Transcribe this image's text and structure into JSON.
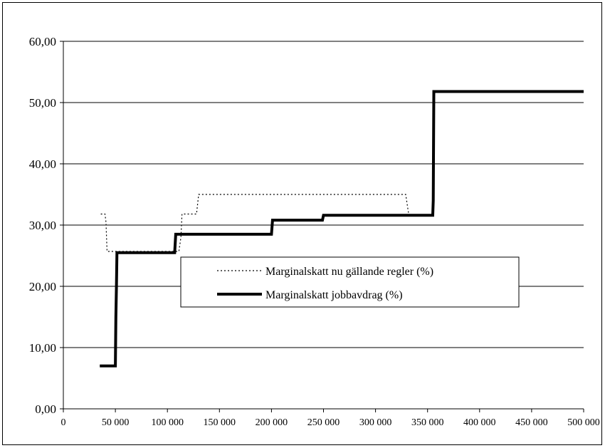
{
  "chart_data": {
    "type": "line",
    "title": "",
    "xlabel": "",
    "ylabel": "",
    "xlim": [
      0,
      500000
    ],
    "ylim": [
      0,
      60
    ],
    "x_ticks": [
      0,
      50000,
      100000,
      150000,
      200000,
      250000,
      300000,
      350000,
      400000,
      450000,
      500000
    ],
    "x_tick_labels": [
      "0",
      "50 000",
      "100 000",
      "150 000",
      "200 000",
      "250 000",
      "300 000",
      "350 000",
      "400 000",
      "450 000",
      "500 000"
    ],
    "y_ticks": [
      0,
      10,
      20,
      30,
      40,
      50,
      60
    ],
    "y_tick_labels": [
      "0,00",
      "10,00",
      "20,00",
      "30,00",
      "40,00",
      "50,00",
      "60,00"
    ],
    "grid": "horizontal",
    "legend_position": "center",
    "series": [
      {
        "name": "Marginalskatt nu gällande regler (%)",
        "style": "dotted",
        "color": "#000000",
        "points": [
          [
            36000,
            31.8
          ],
          [
            40000,
            31.8
          ],
          [
            41000,
            30.5
          ],
          [
            42000,
            25.7
          ],
          [
            111000,
            25.7
          ],
          [
            113000,
            28.0
          ],
          [
            114000,
            31.8
          ],
          [
            128000,
            31.8
          ],
          [
            130000,
            35.0
          ],
          [
            329000,
            35.0
          ],
          [
            332000,
            31.6
          ],
          [
            356000,
            31.6
          ]
        ]
      },
      {
        "name": "Marginalskatt jobbavdrag (%)",
        "style": "solid",
        "color": "#000000",
        "points": [
          [
            35000,
            7.0
          ],
          [
            50000,
            7.0
          ],
          [
            50500,
            15.0
          ],
          [
            51000,
            20.0
          ],
          [
            51500,
            25.5
          ],
          [
            107000,
            25.5
          ],
          [
            108000,
            28.5
          ],
          [
            200000,
            28.5
          ],
          [
            201000,
            30.8
          ],
          [
            249000,
            30.8
          ],
          [
            250000,
            31.6
          ],
          [
            355000,
            31.6
          ],
          [
            355500,
            34.0
          ],
          [
            356000,
            51.8
          ],
          [
            500000,
            51.8
          ]
        ]
      }
    ]
  }
}
